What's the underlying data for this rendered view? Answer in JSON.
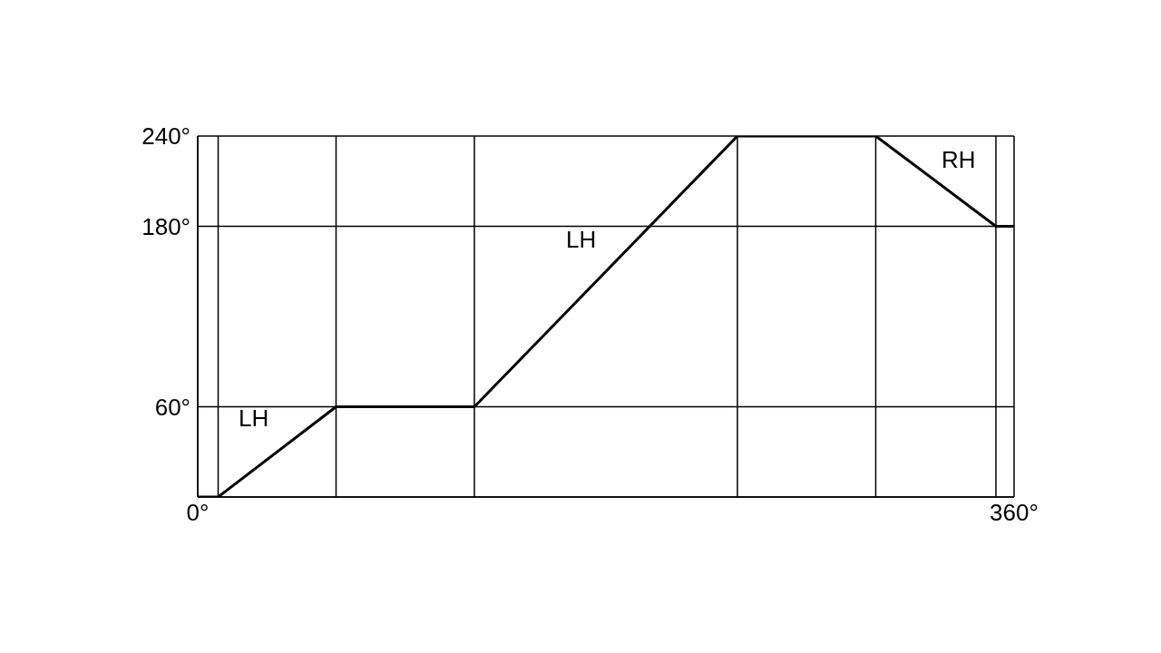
{
  "chart_data": {
    "type": "line",
    "x": [
      0,
      9,
      61,
      122,
      238,
      299,
      352,
      360
    ],
    "series": [
      {
        "color": "#000000",
        "values": [
          0,
          0,
          60,
          60,
          240,
          240,
          180,
          180
        ]
      }
    ],
    "xlim": [
      0,
      360
    ],
    "xticks": [
      {
        "value": 0,
        "label": "0°"
      },
      {
        "value": 9,
        "label": null
      },
      {
        "value": 61,
        "label": null
      },
      {
        "value": 122,
        "label": null
      },
      {
        "value": 238,
        "label": null
      },
      {
        "value": 299,
        "label": null
      },
      {
        "value": 352,
        "label": null
      },
      {
        "value": 360,
        "label": "360°"
      }
    ],
    "ylim": [
      0,
      240
    ],
    "yticks": [
      {
        "value": 0,
        "label": null
      },
      {
        "value": 60,
        "label": "60°"
      },
      {
        "value": 180,
        "label": "180°"
      },
      {
        "value": 240,
        "label": "240°"
      }
    ],
    "grid": true,
    "marker": "none",
    "line_style": "solid",
    "annotations": [
      "LH",
      "LH",
      "RH"
    ]
  }
}
